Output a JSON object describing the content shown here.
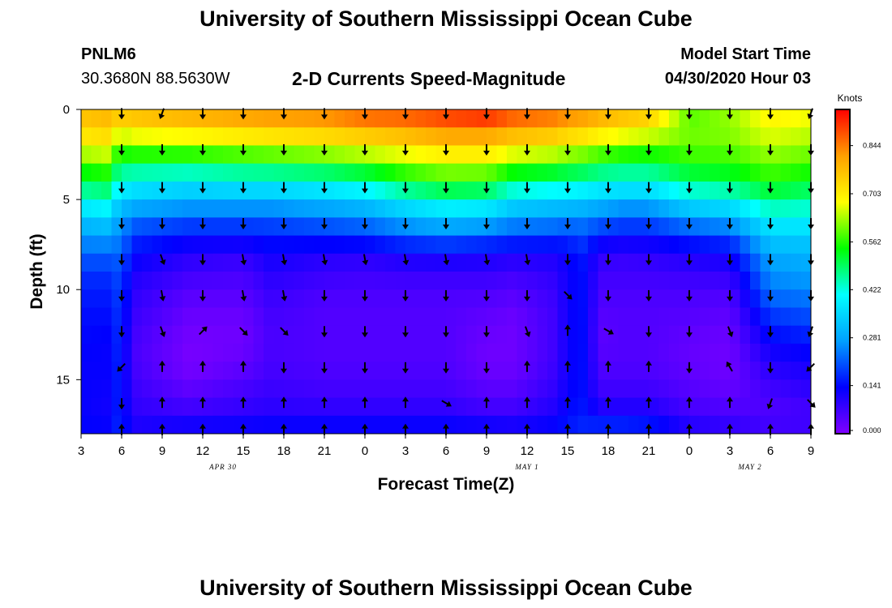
{
  "header": {
    "title": "University of Southern Mississippi Ocean Cube",
    "station_id": "PNLM6",
    "station_coords": "30.3680N 88.5630W",
    "subtitle": "2-D Currents Speed-Magnitude",
    "model_start_label": "Model Start Time",
    "model_start_value": "04/30/2020 Hour 03"
  },
  "footer": {
    "title": "University of Southern Mississippi Ocean Cube"
  },
  "chart_data": {
    "type": "heatmap",
    "title": "2-D Currents Speed-Magnitude",
    "xlabel": "Forecast Time(Z)",
    "ylabel": "Depth (ft)",
    "x_range_hours": [
      0,
      54
    ],
    "y_range_ft": [
      0,
      18
    ],
    "x_tick_hours": [
      0,
      3,
      6,
      9,
      12,
      15,
      18,
      21,
      24,
      27,
      30,
      33,
      36,
      39,
      42,
      45,
      48,
      51,
      54
    ],
    "x_tick_labels": [
      "3",
      "6",
      "9",
      "12",
      "15",
      "18",
      "21",
      "0",
      "3",
      "6",
      "9",
      "12",
      "15",
      "18",
      "21",
      "0",
      "3",
      "6",
      "9"
    ],
    "y_ticks": [
      0,
      5,
      10,
      15
    ],
    "y_tick_labels": [
      "0",
      "5",
      "10",
      "15"
    ],
    "date_labels": [
      {
        "text": "APR 30",
        "hour": 10.5
      },
      {
        "text": "MAY 1",
        "hour": 33
      },
      {
        "text": "MAY 2",
        "hour": 49.5
      }
    ],
    "colorbar": {
      "unit": "Knots",
      "min": 0,
      "max": 0.95,
      "ticks": [
        0.0,
        0.141,
        0.281,
        0.422,
        0.562,
        0.703,
        0.844
      ],
      "tick_labels": [
        "0.000",
        "0.141",
        "0.281",
        "0.422",
        "0.562",
        "0.703",
        "0.844"
      ],
      "colors": [
        "#8000ff",
        "#0000ff",
        "#00a0ff",
        "#00ffff",
        "#00ff00",
        "#ffff00",
        "#ffa000",
        "#ff0000"
      ]
    },
    "vector_hours": [
      3,
      6,
      9,
      12,
      15,
      18,
      21,
      24,
      27,
      30,
      33,
      36,
      39,
      42,
      45,
      48,
      51,
      54
    ],
    "vector_depths_ft": [
      0.2,
      2.2,
      4.3,
      6.3,
      8.3,
      10.3,
      12.3,
      14.3,
      16.3,
      17.8
    ],
    "speed_profile_depths_ft": [
      0,
      1,
      2,
      3,
      4,
      5,
      6,
      7,
      8,
      9,
      10,
      11,
      12,
      13,
      14,
      15,
      16,
      17,
      18
    ],
    "speed_profiles": [
      {
        "hour": 0,
        "speeds": [
          0.78,
          0.74,
          0.68,
          0.58,
          0.5,
          0.42,
          0.33,
          0.27,
          0.22,
          0.18,
          0.16,
          0.15,
          0.14,
          0.14,
          0.13,
          0.13,
          0.13,
          0.13,
          0.14
        ]
      },
      {
        "hour": 2,
        "speeds": [
          0.8,
          0.75,
          0.7,
          0.6,
          0.52,
          0.44,
          0.35,
          0.28,
          0.22,
          0.18,
          0.16,
          0.15,
          0.14,
          0.13,
          0.13,
          0.13,
          0.12,
          0.12,
          0.14
        ]
      },
      {
        "hour": 2.8,
        "speeds": [
          0.79,
          0.7,
          0.6,
          0.5,
          0.42,
          0.35,
          0.28,
          0.25,
          0.22,
          0.2,
          0.19,
          0.18,
          0.17,
          0.17,
          0.16,
          0.16,
          0.16,
          0.16,
          0.17
        ]
      },
      {
        "hour": 4,
        "speeds": [
          0.8,
          0.72,
          0.62,
          0.5,
          0.4,
          0.32,
          0.24,
          0.18,
          0.14,
          0.11,
          0.09,
          0.08,
          0.07,
          0.06,
          0.06,
          0.07,
          0.08,
          0.09,
          0.12
        ]
      },
      {
        "hour": 8,
        "speeds": [
          0.82,
          0.74,
          0.63,
          0.5,
          0.38,
          0.3,
          0.22,
          0.15,
          0.1,
          0.07,
          0.05,
          0.03,
          0.02,
          0.01,
          0.01,
          0.02,
          0.05,
          0.08,
          0.15
        ]
      },
      {
        "hour": 12,
        "speeds": [
          0.84,
          0.76,
          0.65,
          0.52,
          0.4,
          0.3,
          0.22,
          0.15,
          0.09,
          0.06,
          0.05,
          0.03,
          0.02,
          0.02,
          0.03,
          0.05,
          0.07,
          0.09,
          0.15
        ]
      },
      {
        "hour": 14,
        "speeds": [
          0.85,
          0.77,
          0.66,
          0.53,
          0.4,
          0.3,
          0.22,
          0.16,
          0.12,
          0.1,
          0.08,
          0.07,
          0.06,
          0.06,
          0.06,
          0.07,
          0.08,
          0.1,
          0.15
        ]
      },
      {
        "hour": 18,
        "speeds": [
          0.86,
          0.78,
          0.68,
          0.55,
          0.42,
          0.32,
          0.24,
          0.17,
          0.1,
          0.08,
          0.06,
          0.05,
          0.05,
          0.05,
          0.05,
          0.06,
          0.07,
          0.1,
          0.15
        ]
      },
      {
        "hour": 21,
        "speeds": [
          0.9,
          0.8,
          0.7,
          0.58,
          0.45,
          0.34,
          0.26,
          0.18,
          0.1,
          0.07,
          0.06,
          0.05,
          0.05,
          0.05,
          0.05,
          0.06,
          0.07,
          0.1,
          0.15
        ]
      },
      {
        "hour": 24,
        "speeds": [
          0.9,
          0.82,
          0.72,
          0.62,
          0.52,
          0.4,
          0.3,
          0.22,
          0.12,
          0.08,
          0.06,
          0.05,
          0.05,
          0.05,
          0.05,
          0.06,
          0.07,
          0.1,
          0.15
        ]
      },
      {
        "hour": 27,
        "speeds": [
          0.92,
          0.85,
          0.75,
          0.65,
          0.56,
          0.44,
          0.33,
          0.24,
          0.13,
          0.08,
          0.06,
          0.05,
          0.05,
          0.05,
          0.05,
          0.06,
          0.07,
          0.1,
          0.15
        ]
      },
      {
        "hour": 30,
        "speeds": [
          0.95,
          0.85,
          0.75,
          0.65,
          0.55,
          0.43,
          0.32,
          0.22,
          0.12,
          0.08,
          0.06,
          0.04,
          0.03,
          0.02,
          0.02,
          0.03,
          0.05,
          0.08,
          0.15
        ]
      },
      {
        "hour": 32,
        "speeds": [
          0.9,
          0.82,
          0.72,
          0.6,
          0.48,
          0.37,
          0.28,
          0.2,
          0.11,
          0.07,
          0.05,
          0.03,
          0.02,
          0.02,
          0.02,
          0.03,
          0.05,
          0.08,
          0.14
        ]
      },
      {
        "hour": 35,
        "speeds": [
          0.88,
          0.8,
          0.7,
          0.58,
          0.46,
          0.35,
          0.27,
          0.19,
          0.11,
          0.09,
          0.08,
          0.07,
          0.07,
          0.07,
          0.07,
          0.08,
          0.09,
          0.11,
          0.15
        ]
      },
      {
        "hour": 36,
        "speeds": [
          0.86,
          0.78,
          0.68,
          0.56,
          0.45,
          0.35,
          0.26,
          0.18,
          0.13,
          0.12,
          0.12,
          0.12,
          0.12,
          0.12,
          0.12,
          0.12,
          0.13,
          0.14,
          0.16
        ]
      },
      {
        "hour": 37,
        "speeds": [
          0.85,
          0.77,
          0.67,
          0.55,
          0.44,
          0.34,
          0.26,
          0.2,
          0.16,
          0.15,
          0.15,
          0.15,
          0.15,
          0.15,
          0.15,
          0.15,
          0.15,
          0.16,
          0.17
        ]
      },
      {
        "hour": 38.5,
        "speeds": [
          0.82,
          0.74,
          0.64,
          0.52,
          0.42,
          0.32,
          0.24,
          0.16,
          0.09,
          0.07,
          0.06,
          0.05,
          0.04,
          0.04,
          0.05,
          0.06,
          0.08,
          0.12,
          0.2
        ]
      },
      {
        "hour": 40,
        "speeds": [
          0.8,
          0.72,
          0.62,
          0.5,
          0.42,
          0.3,
          0.22,
          0.15,
          0.08,
          0.07,
          0.06,
          0.05,
          0.05,
          0.05,
          0.05,
          0.06,
          0.08,
          0.12,
          0.2
        ]
      },
      {
        "hour": 42,
        "speeds": [
          0.78,
          0.7,
          0.6,
          0.5,
          0.42,
          0.3,
          0.22,
          0.15,
          0.09,
          0.07,
          0.06,
          0.05,
          0.05,
          0.05,
          0.05,
          0.06,
          0.08,
          0.12,
          0.18
        ]
      },
      {
        "hour": 45,
        "speeds": [
          0.58,
          0.6,
          0.6,
          0.55,
          0.48,
          0.38,
          0.28,
          0.18,
          0.11,
          0.08,
          0.06,
          0.05,
          0.04,
          0.03,
          0.03,
          0.04,
          0.05,
          0.07,
          0.12
        ]
      },
      {
        "hour": 48,
        "speeds": [
          0.62,
          0.62,
          0.6,
          0.56,
          0.5,
          0.4,
          0.3,
          0.2,
          0.13,
          0.09,
          0.06,
          0.04,
          0.03,
          0.02,
          0.02,
          0.02,
          0.04,
          0.06,
          0.1
        ]
      },
      {
        "hour": 51,
        "speeds": [
          0.7,
          0.68,
          0.64,
          0.6,
          0.55,
          0.48,
          0.4,
          0.34,
          0.29,
          0.26,
          0.24,
          0.2,
          0.16,
          0.13,
          0.1,
          0.08,
          0.06,
          0.05,
          0.08
        ]
      },
      {
        "hour": 54,
        "speeds": [
          0.68,
          0.66,
          0.62,
          0.58,
          0.52,
          0.46,
          0.4,
          0.34,
          0.3,
          0.28,
          0.25,
          0.22,
          0.18,
          0.15,
          0.12,
          0.1,
          0.08,
          0.06,
          0.08
        ]
      }
    ],
    "vector_columns": [
      {
        "hour": 3,
        "directions_deg": [
          180,
          180,
          180,
          180,
          180,
          180,
          180,
          225,
          180,
          0
        ]
      },
      {
        "hour": 6,
        "directions_deg": [
          200,
          180,
          180,
          180,
          160,
          170,
          160,
          0,
          0,
          0
        ]
      },
      {
        "hour": 9,
        "directions_deg": [
          180,
          180,
          180,
          180,
          180,
          180,
          45,
          0,
          0,
          0
        ]
      },
      {
        "hour": 12,
        "directions_deg": [
          180,
          180,
          180,
          180,
          170,
          170,
          135,
          0,
          0,
          0
        ]
      },
      {
        "hour": 15,
        "directions_deg": [
          180,
          180,
          180,
          180,
          170,
          170,
          135,
          180,
          0,
          0
        ]
      },
      {
        "hour": 18,
        "directions_deg": [
          180,
          180,
          180,
          180,
          170,
          180,
          180,
          180,
          0,
          0
        ]
      },
      {
        "hour": 21,
        "directions_deg": [
          180,
          180,
          180,
          180,
          170,
          180,
          180,
          180,
          0,
          0
        ]
      },
      {
        "hour": 24,
        "directions_deg": [
          180,
          180,
          180,
          180,
          170,
          180,
          180,
          180,
          0,
          0
        ]
      },
      {
        "hour": 27,
        "directions_deg": [
          180,
          180,
          180,
          180,
          170,
          180,
          180,
          180,
          120,
          0
        ]
      },
      {
        "hour": 30,
        "directions_deg": [
          180,
          180,
          180,
          180,
          170,
          180,
          180,
          180,
          0,
          0
        ]
      },
      {
        "hour": 33,
        "directions_deg": [
          180,
          180,
          180,
          180,
          170,
          180,
          160,
          0,
          0,
          0
        ]
      },
      {
        "hour": 36,
        "directions_deg": [
          180,
          180,
          180,
          180,
          180,
          135,
          0,
          0,
          0,
          0
        ]
      },
      {
        "hour": 39,
        "directions_deg": [
          180,
          180,
          180,
          180,
          180,
          180,
          120,
          0,
          0,
          0
        ]
      },
      {
        "hour": 42,
        "directions_deg": [
          180,
          180,
          180,
          180,
          180,
          180,
          180,
          0,
          0,
          0
        ]
      },
      {
        "hour": 45,
        "directions_deg": [
          180,
          180,
          180,
          180,
          180,
          180,
          180,
          180,
          0,
          0
        ]
      },
      {
        "hour": 48,
        "directions_deg": [
          180,
          180,
          180,
          180,
          180,
          180,
          160,
          330,
          0,
          0
        ]
      },
      {
        "hour": 51,
        "directions_deg": [
          180,
          180,
          180,
          180,
          180,
          180,
          180,
          180,
          200,
          0
        ]
      },
      {
        "hour": 54,
        "directions_deg": [
          200,
          180,
          180,
          180,
          180,
          180,
          200,
          225,
          135,
          0
        ]
      }
    ]
  }
}
